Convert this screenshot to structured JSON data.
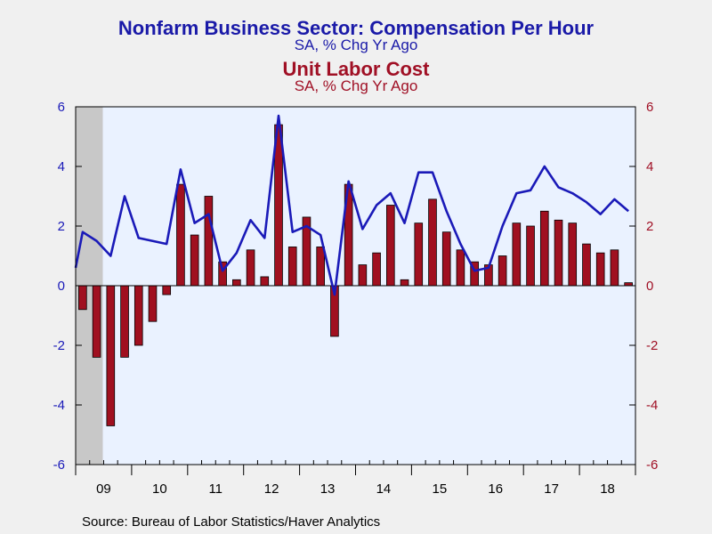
{
  "header": {
    "title1": "Nonfarm Business Sector: Compensation Per Hour",
    "subtitle1": "SA, % Chg Yr Ago",
    "title2": "Unit Labor Cost",
    "subtitle2": "SA, % Chg Yr Ago"
  },
  "footer": {
    "source": "Source:  Bureau of Labor Statistics/Haver Analytics"
  },
  "chart_data": {
    "type": "bar",
    "x_unit": "quarter",
    "x": [
      "2009Q1",
      "2009Q2",
      "2009Q3",
      "2009Q4",
      "2010Q1",
      "2010Q2",
      "2010Q3",
      "2010Q4",
      "2011Q1",
      "2011Q2",
      "2011Q3",
      "2011Q4",
      "2012Q1",
      "2012Q2",
      "2012Q3",
      "2012Q4",
      "2013Q1",
      "2013Q2",
      "2013Q3",
      "2013Q4",
      "2014Q1",
      "2014Q2",
      "2014Q3",
      "2014Q4",
      "2015Q1",
      "2015Q2",
      "2015Q3",
      "2015Q4",
      "2016Q1",
      "2016Q2",
      "2016Q3",
      "2016Q4",
      "2017Q1",
      "2017Q2",
      "2017Q3",
      "2017Q4",
      "2018Q1",
      "2018Q2",
      "2018Q3",
      "2018Q4"
    ],
    "year_labels": [
      "09",
      "10",
      "11",
      "12",
      "13",
      "14",
      "15",
      "16",
      "17",
      "18"
    ],
    "series": [
      {
        "name": "Nonfarm Business Sector: Compensation Per Hour",
        "type": "line",
        "axis": "left",
        "color": "#1a1ab8",
        "values": [
          1.8,
          1.5,
          1.0,
          3.0,
          1.6,
          1.5,
          1.4,
          3.9,
          2.1,
          2.4,
          0.5,
          1.1,
          2.2,
          1.6,
          5.7,
          1.8,
          2.0,
          1.7,
          -0.3,
          3.5,
          1.9,
          2.7,
          3.1,
          2.1,
          3.8,
          3.8,
          2.5,
          1.4,
          0.5,
          0.6,
          2.0,
          3.1,
          3.2,
          4.0,
          3.3,
          3.1,
          2.8,
          2.4,
          2.9,
          2.5
        ]
      },
      {
        "name": "Unit Labor Cost",
        "type": "bar",
        "axis": "right",
        "color": "#a01020",
        "values": [
          -0.8,
          -2.4,
          -4.7,
          -2.4,
          -2.0,
          -1.2,
          -0.3,
          3.4,
          1.7,
          3.0,
          0.8,
          0.2,
          1.2,
          0.3,
          5.4,
          1.3,
          2.3,
          1.3,
          -1.7,
          3.4,
          0.7,
          1.1,
          2.7,
          0.2,
          2.1,
          2.9,
          1.8,
          1.2,
          0.8,
          0.7,
          1.0,
          2.1,
          2.0,
          2.5,
          2.2,
          2.1,
          1.4,
          1.1,
          1.2,
          0.1
        ]
      }
    ],
    "left_axis": {
      "ylim": [
        -6,
        6
      ],
      "ticks": [
        -6,
        -4,
        -2,
        0,
        2,
        4,
        6
      ],
      "color": "#1a1ab8"
    },
    "right_axis": {
      "ylim": [
        -6,
        6
      ],
      "ticks": [
        -6,
        -4,
        -2,
        0,
        2,
        4,
        6
      ],
      "color": "#a01025"
    },
    "recession_shading": {
      "start": "2009Q1",
      "end": "2009Q2",
      "color": "#c8c8c8"
    },
    "plot_background": "#eaf2ff",
    "grid": false
  }
}
